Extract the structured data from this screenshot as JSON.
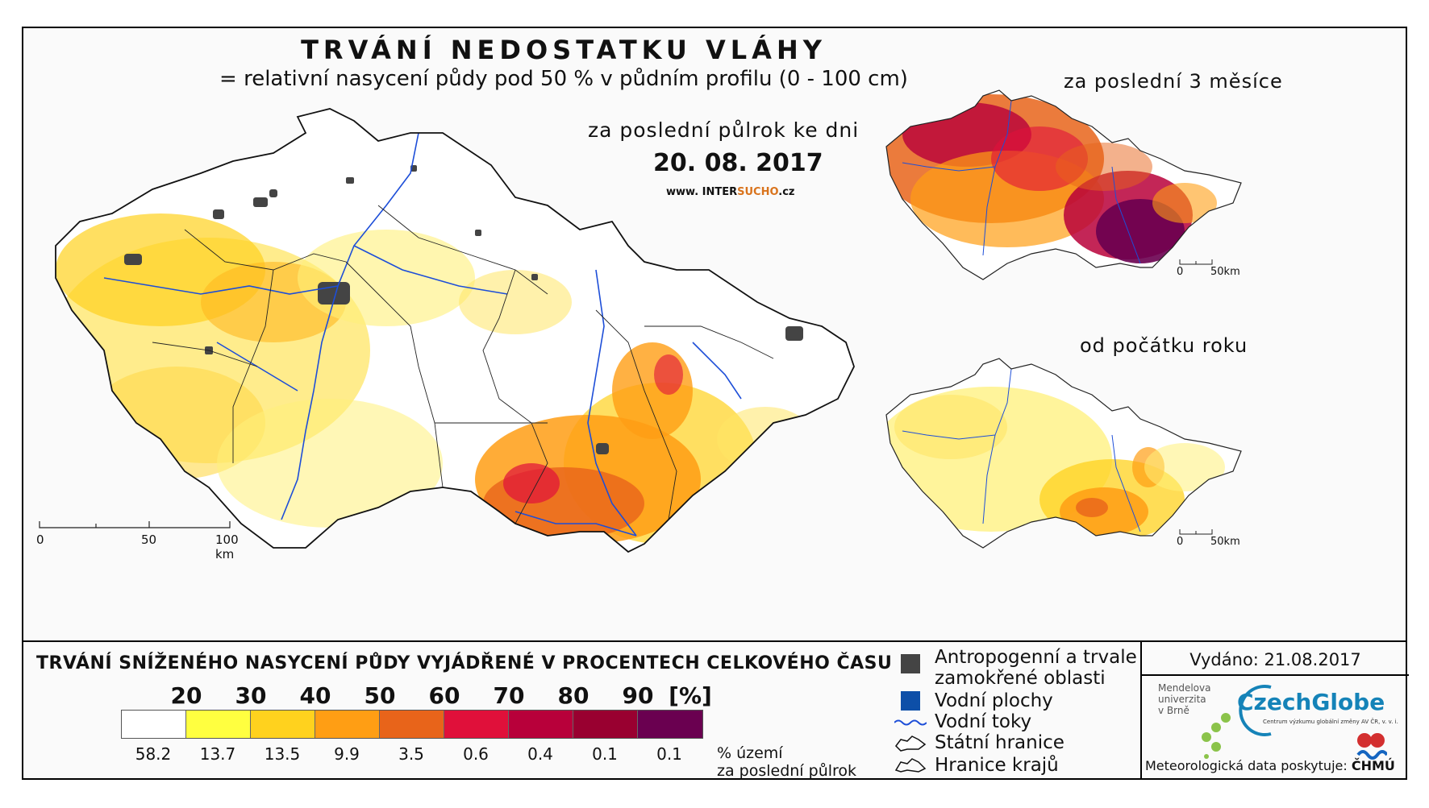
{
  "header": {
    "title": "TRVÁNÍ NEDOSTATKU VLÁHY",
    "subtitle": "= relativní nasycení půdy pod 50 % v půdním profilu (0 - 100 cm)",
    "period": "za poslední půlrok ke dni",
    "date": "20. 08. 2017",
    "web_prefix": "www. INTER",
    "web_highlight": "SUCHO",
    "web_suffix": ".cz"
  },
  "insets": {
    "top_title": "za poslední 3 měsíce",
    "bottom_title": "od počátku roku"
  },
  "scales": {
    "main": [
      "0",
      "50",
      "100 km"
    ],
    "inset_top": [
      "0",
      "50km"
    ],
    "inset_bottom": [
      "0",
      "50km"
    ]
  },
  "legend": {
    "title": "TRVÁNÍ SNÍŽENÉHO NASYCENÍ PŮDY VYJÁDŘENÉ V PROCENTECH CELKOVÉHO ČASU",
    "ticks": [
      "20",
      "30",
      "40",
      "50",
      "60",
      "70",
      "80",
      "90",
      "[%]"
    ],
    "colors": [
      "#ffffff",
      "#ffff40",
      "#ffd21e",
      "#ff9e14",
      "#e8641a",
      "#e0103a",
      "#b8003a",
      "#990030",
      "#6a0050"
    ],
    "percentages": [
      "58.2",
      "13.7",
      "13.5",
      "9.9",
      "3.5",
      "0.6",
      "0.4",
      "0.1",
      "0.1"
    ],
    "pct_unit_line1": "% území",
    "pct_unit_line2": "za poslední půlrok"
  },
  "key": {
    "anthropogenic_line1": "Antropogenní a trvale",
    "anthropogenic_line2": "zamokřené oblasti",
    "water_bodies": "Vodní plochy",
    "rivers": "Vodní toky",
    "state_border": "Státní hranice",
    "region_border": "Hranice krajů"
  },
  "credits": {
    "issued": "Vydáno: 21.08.2017",
    "mendel": [
      "Mendelova",
      "univerzita",
      "v Brně"
    ],
    "czechglobe": "CzechGlobe",
    "czechglobe_sub": "Centrum výzkumu globální změny AV ČR, v. v. i.",
    "met_data": "Meteorologická data poskytuje:",
    "chmu": "ČHMÚ"
  }
}
